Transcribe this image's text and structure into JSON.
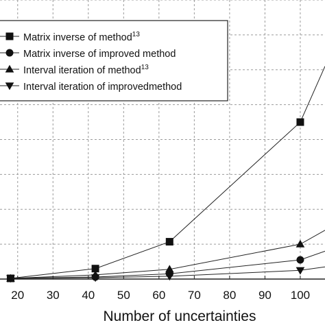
{
  "chart_data": {
    "type": "line",
    "title": "",
    "xlabel": "Number of uncertainties",
    "ylabel": "",
    "xlim": [
      15,
      107
    ],
    "ylim": [
      0,
      8
    ],
    "grid": "dashed",
    "x_ticks": [
      "20",
      "30",
      "40",
      "50",
      "60",
      "70",
      "80",
      "90",
      "100"
    ],
    "y_ticks": [
      "0",
      "1",
      "2",
      "3",
      "4",
      "5",
      "6",
      "7",
      "8"
    ],
    "legend_placement": "top-left",
    "legend": [
      {
        "text": "Matrix inverse of method",
        "sup": "13",
        "marker": "square"
      },
      {
        "text": "Matrix inverse of improved method",
        "sup": "",
        "marker": "circle"
      },
      {
        "text": "Interval iteration of method",
        "sup": "13",
        "marker": "triangle-up"
      },
      {
        "text": "Interval iteration of improvedmethod",
        "sup": "",
        "marker": "triangle-down"
      }
    ],
    "series": [
      {
        "name": "Matrix inverse of method13",
        "marker": "square",
        "x": [
          18,
          42,
          63,
          100,
          107
        ],
        "y": [
          0.02,
          0.3,
          1.07,
          4.5,
          6.1
        ]
      },
      {
        "name": "Matrix inverse of improved method",
        "marker": "circle",
        "x": [
          18,
          42,
          63,
          100,
          107
        ],
        "y": [
          0.02,
          0.06,
          0.15,
          0.55,
          0.8
        ]
      },
      {
        "name": "Interval iteration of method13",
        "marker": "triangle-up",
        "x": [
          18,
          42,
          63,
          100,
          107
        ],
        "y": [
          0.02,
          0.12,
          0.28,
          1.0,
          1.4
        ]
      },
      {
        "name": "Interval iteration of improvedmethod",
        "marker": "triangle-down",
        "x": [
          18,
          42,
          63,
          100,
          107
        ],
        "y": [
          0.02,
          0.04,
          0.08,
          0.25,
          0.35
        ]
      }
    ]
  }
}
